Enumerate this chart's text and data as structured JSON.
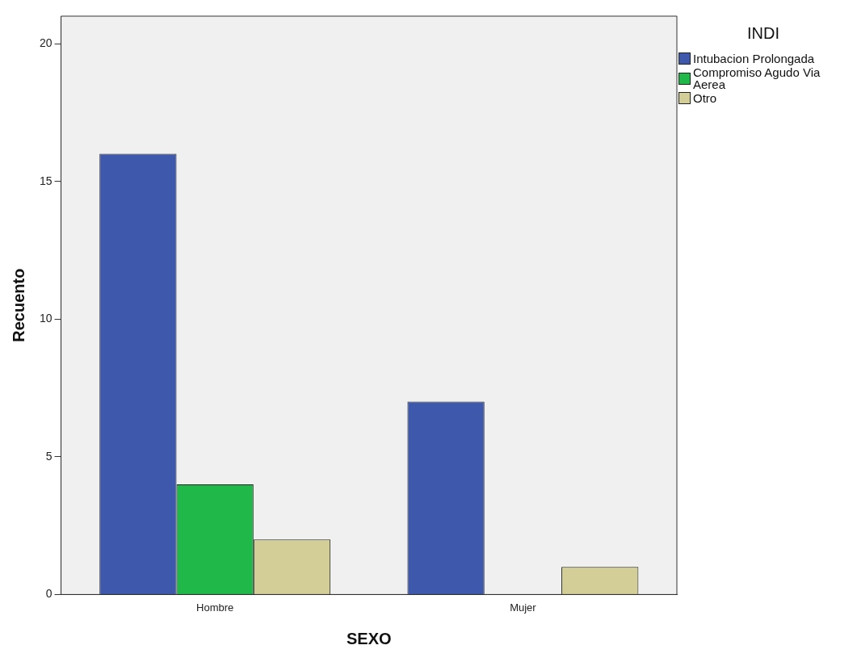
{
  "chart_data": {
    "type": "bar",
    "xlabel": "SEXO",
    "ylabel": "Recuento",
    "legend_title": "INDI",
    "legend": "top right",
    "grid": false,
    "categories": [
      "Hombre",
      "Mujer"
    ],
    "ylim": [
      0,
      21
    ],
    "yticks": [
      0,
      5,
      10,
      15,
      20
    ],
    "series": [
      {
        "name": "Intubacion Prolongada",
        "color": "#3e58ac",
        "values": [
          16,
          7
        ]
      },
      {
        "name": "Compromiso Agudo Via Aerea",
        "color": "#21b84a",
        "values": [
          4,
          0
        ]
      },
      {
        "name": "Otro",
        "color": "#d3ce97",
        "values": [
          2,
          1
        ]
      }
    ]
  }
}
